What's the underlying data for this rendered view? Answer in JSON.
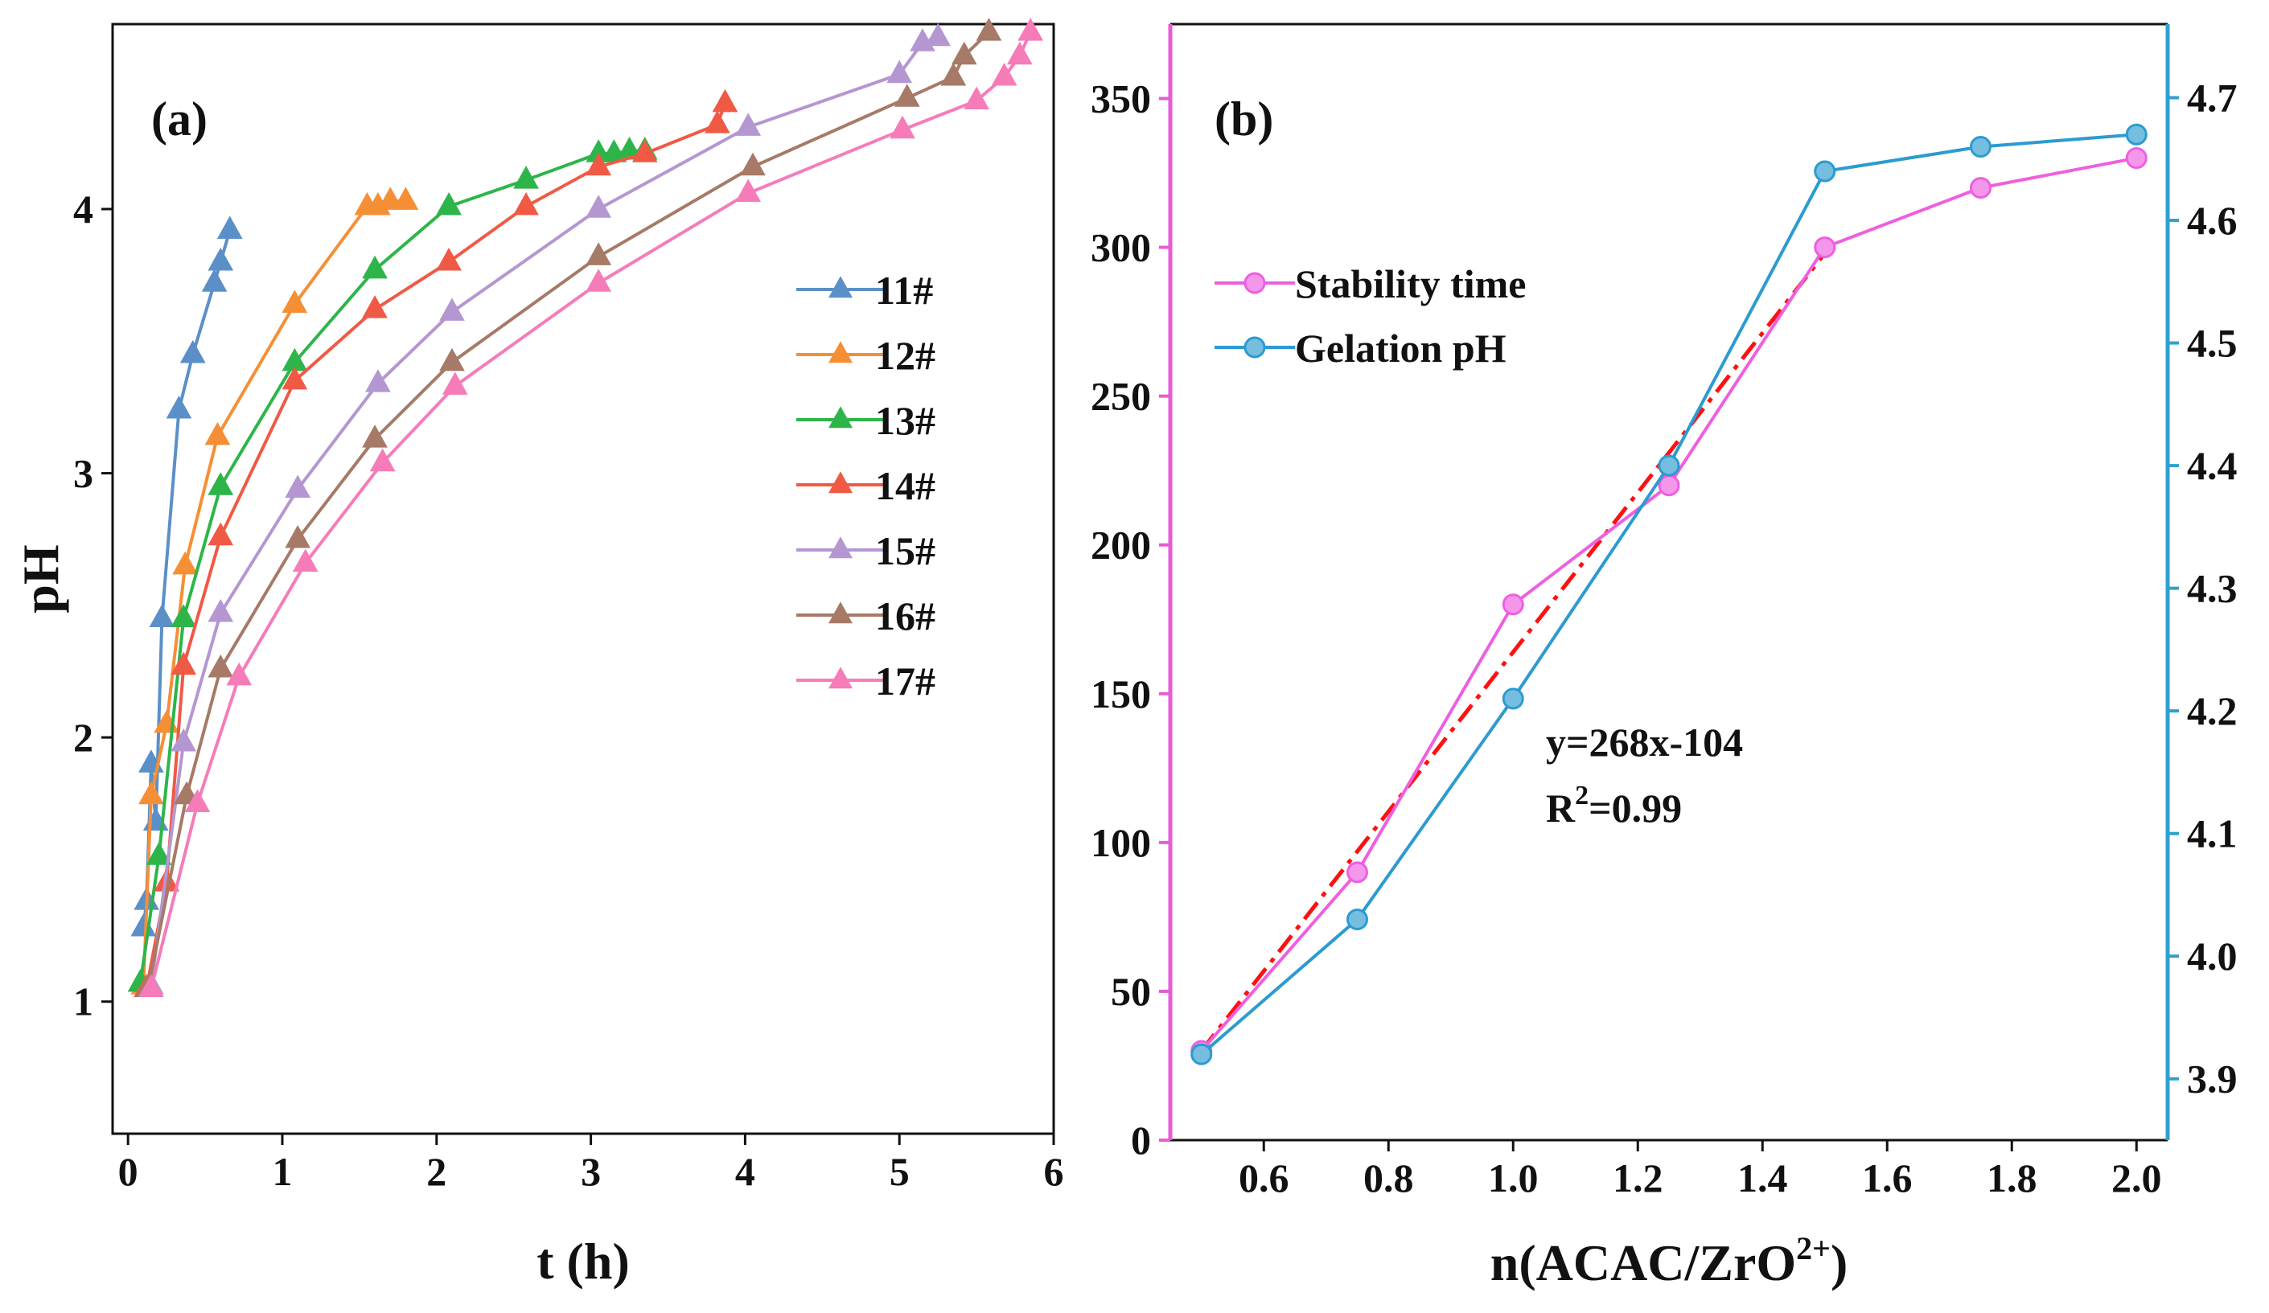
{
  "chart_data": [
    {
      "type": "line",
      "panel_label": "(a)",
      "xlabel": "t (h)",
      "ylabel": "pH",
      "xlim": [
        -0.1,
        6
      ],
      "ylim": [
        0.5,
        4.7
      ],
      "xticks": [
        0,
        1,
        2,
        3,
        4,
        5,
        6
      ],
      "yticks": [
        1,
        2,
        3,
        4
      ],
      "tick_labels_x": [
        "0",
        "1",
        "2",
        "3",
        "4",
        "5",
        "6"
      ],
      "tick_labels_y": [
        "1",
        "2",
        "3",
        "4"
      ],
      "legend": "right",
      "series": [
        {
          "name": "11#",
          "color": "#5B8FC8",
          "marker": "triangle",
          "points": [
            [
              0.1,
              1.28
            ],
            [
              0.12,
              1.38
            ],
            [
              0.15,
              1.9
            ],
            [
              0.18,
              1.68
            ],
            [
              0.22,
              2.45
            ],
            [
              0.33,
              3.24
            ],
            [
              0.42,
              3.45
            ],
            [
              0.56,
              3.72
            ],
            [
              0.6,
              3.8
            ],
            [
              0.66,
              3.92
            ]
          ]
        },
        {
          "name": "12#",
          "color": "#F58F35",
          "marker": "triangle",
          "points": [
            [
              0.1,
              1.06
            ],
            [
              0.15,
              1.78
            ],
            [
              0.25,
              2.05
            ],
            [
              0.37,
              2.65
            ],
            [
              0.58,
              3.14
            ],
            [
              1.08,
              3.64
            ],
            [
              1.55,
              4.01
            ],
            [
              1.62,
              4.01
            ],
            [
              1.7,
              4.03
            ],
            [
              1.8,
              4.03
            ]
          ]
        },
        {
          "name": "13#",
          "color": "#2DB54A",
          "marker": "triangle",
          "points": [
            [
              0.08,
              1.07
            ],
            [
              0.2,
              1.55
            ],
            [
              0.36,
              2.45
            ],
            [
              0.6,
              2.95
            ],
            [
              1.08,
              3.42
            ],
            [
              1.6,
              3.77
            ],
            [
              2.08,
              4.01
            ],
            [
              2.58,
              4.11
            ],
            [
              3.05,
              4.21
            ],
            [
              3.15,
              4.21
            ],
            [
              3.25,
              4.22
            ],
            [
              3.35,
              4.22
            ]
          ]
        },
        {
          "name": "14#",
          "color": "#F05A45",
          "marker": "triangle",
          "points": [
            [
              0.12,
              1.05
            ],
            [
              0.25,
              1.45
            ],
            [
              0.36,
              2.27
            ],
            [
              0.6,
              2.76
            ],
            [
              1.08,
              3.35
            ],
            [
              1.6,
              3.62
            ],
            [
              2.08,
              3.8
            ],
            [
              2.58,
              4.01
            ],
            [
              3.05,
              4.16
            ],
            [
              3.35,
              4.21
            ],
            [
              3.82,
              4.32
            ],
            [
              3.87,
              4.4
            ]
          ]
        },
        {
          "name": "15#",
          "color": "#B497D0",
          "marker": "triangle",
          "points": [
            [
              0.15,
              1.06
            ],
            [
              0.36,
              1.98
            ],
            [
              0.6,
              2.47
            ],
            [
              1.1,
              2.94
            ],
            [
              1.62,
              3.34
            ],
            [
              2.1,
              3.61
            ],
            [
              3.05,
              4.0
            ],
            [
              4.02,
              4.31
            ],
            [
              5.0,
              4.51
            ],
            [
              5.15,
              4.63
            ],
            [
              5.25,
              4.65
            ]
          ]
        },
        {
          "name": "16#",
          "color": "#A67A67",
          "marker": "triangle",
          "points": [
            [
              0.13,
              1.05
            ],
            [
              0.38,
              1.78
            ],
            [
              0.6,
              2.26
            ],
            [
              1.1,
              2.75
            ],
            [
              1.6,
              3.13
            ],
            [
              2.1,
              3.42
            ],
            [
              3.05,
              3.82
            ],
            [
              4.05,
              4.16
            ],
            [
              5.05,
              4.42
            ],
            [
              5.35,
              4.5
            ],
            [
              5.42,
              4.58
            ],
            [
              5.58,
              4.67
            ]
          ]
        },
        {
          "name": "17#",
          "color": "#F57CB8",
          "marker": "triangle",
          "points": [
            [
              0.15,
              1.05
            ],
            [
              0.45,
              1.75
            ],
            [
              0.72,
              2.23
            ],
            [
              1.15,
              2.66
            ],
            [
              1.65,
              3.04
            ],
            [
              2.12,
              3.33
            ],
            [
              3.05,
              3.72
            ],
            [
              4.02,
              4.06
            ],
            [
              5.02,
              4.3
            ],
            [
              5.5,
              4.41
            ],
            [
              5.68,
              4.5
            ],
            [
              5.78,
              4.58
            ],
            [
              5.85,
              4.67
            ]
          ]
        }
      ]
    },
    {
      "type": "line",
      "panel_label": "(b)",
      "xlabel": "n(ACAC/ZrO",
      "xlabel_sup": "2+",
      "xlabel_close": ")",
      "xlim": [
        0.45,
        2.05
      ],
      "y_left_lim": [
        0,
        375
      ],
      "y_right_lim": [
        3.85,
        4.76
      ],
      "xticks": [
        0.6,
        0.8,
        1.0,
        1.2,
        1.4,
        1.6,
        1.8,
        2.0
      ],
      "tick_labels_x": [
        "0.6",
        "0.8",
        "1.0",
        "1.2",
        "1.4",
        "1.6",
        "1.8",
        "2.0"
      ],
      "yticks_left": [
        0,
        50,
        100,
        150,
        200,
        250,
        300,
        350
      ],
      "tick_labels_y_left": [
        "0",
        "50",
        "100",
        "150",
        "200",
        "250",
        "300",
        "350"
      ],
      "yticks_right": [
        3.9,
        4.0,
        4.1,
        4.2,
        4.3,
        4.4,
        4.5,
        4.6,
        4.7
      ],
      "tick_labels_y_right": [
        "3.9",
        "4.0",
        "4.1",
        "4.2",
        "4.3",
        "4.4",
        "4.5",
        "4.6",
        "4.7"
      ],
      "left_axis_color": "#E85BD5",
      "right_axis_color": "#2FA0D0",
      "legend": "top-left",
      "x": [
        0.5,
        0.75,
        1.0,
        1.25,
        1.5,
        1.75,
        2.0
      ],
      "series": [
        {
          "name": "Stability time",
          "axis": "left",
          "color": "#EE5FE0",
          "marker": "circle",
          "values": [
            30,
            90,
            180,
            220,
            300,
            320,
            330
          ]
        },
        {
          "name": "Gelation pH",
          "axis": "right",
          "color": "#2B9BD0",
          "marker": "circle",
          "values": [
            3.92,
            4.03,
            4.21,
            4.4,
            4.64,
            4.66,
            4.67
          ]
        }
      ],
      "fit": {
        "color": "#FF1010",
        "style": "dash-dot",
        "x_range": [
          0.5,
          1.5
        ],
        "slope": 268,
        "intercept": -104
      },
      "annotation": {
        "line1": "y=268x-104",
        "line2_prefix": "R",
        "line2_sup": "2",
        "line2_suffix": "=0.99"
      }
    }
  ]
}
